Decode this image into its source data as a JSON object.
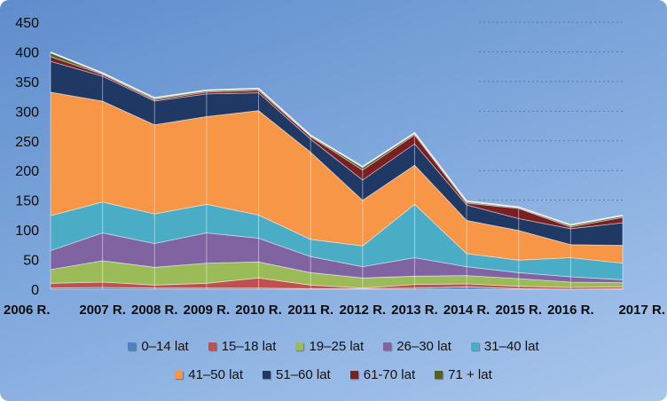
{
  "chart_data": {
    "type": "area",
    "stacked": true,
    "categories": [
      "2006 R.",
      "2007 R.",
      "2008 R.",
      "2009 R.",
      "2010 R.",
      "2011 R.",
      "2012 R.",
      "2013 R.",
      "2014 R.",
      "2015 R.",
      "2016 R.",
      "2017 R."
    ],
    "ylim": [
      0,
      450
    ],
    "yticks": [
      0,
      50,
      100,
      150,
      200,
      250,
      300,
      350,
      400,
      450
    ],
    "grid": true,
    "legend_position": "bottom",
    "series": [
      {
        "name": "0–14 lat",
        "color": "#4f81bd",
        "values": [
          2,
          3,
          2,
          2,
          2,
          1,
          1,
          2,
          4,
          1,
          0,
          1
        ]
      },
      {
        "name": "15–18 lat",
        "color": "#c0504d",
        "values": [
          8,
          9,
          5,
          8,
          17,
          6,
          1,
          6,
          5,
          4,
          3,
          3
        ]
      },
      {
        "name": "19–25 lat",
        "color": "#9bbb59",
        "values": [
          23,
          36,
          30,
          34,
          27,
          21,
          17,
          14,
          14,
          13,
          9,
          7
        ]
      },
      {
        "name": "26–30 lat",
        "color": "#8064a2",
        "values": [
          32,
          47,
          40,
          51,
          40,
          27,
          19,
          31,
          15,
          10,
          9,
          5
        ]
      },
      {
        "name": "31–40 lat",
        "color": "#4bacc6",
        "values": [
          59,
          52,
          50,
          48,
          39,
          29,
          35,
          90,
          22,
          21,
          32,
          28
        ]
      },
      {
        "name": "41–50 lat",
        "color": "#f79646",
        "values": [
          208,
          170,
          150,
          148,
          176,
          147,
          77,
          66,
          56,
          50,
          22,
          30
        ]
      },
      {
        "name": "51–60 lat",
        "color": "#1f3864",
        "values": [
          52,
          42,
          40,
          38,
          30,
          22,
          34,
          36,
          26,
          20,
          27,
          38
        ]
      },
      {
        "name": "61-70 lat",
        "color": "#7b2022",
        "values": [
          8,
          3,
          2,
          3,
          4,
          4,
          17,
          15,
          3,
          17,
          3,
          9
        ]
      },
      {
        "name": "71 + lat",
        "color": "#4f6228",
        "values": [
          6,
          1,
          2,
          2,
          2,
          1,
          4,
          2,
          2,
          1,
          2,
          2
        ]
      }
    ]
  }
}
